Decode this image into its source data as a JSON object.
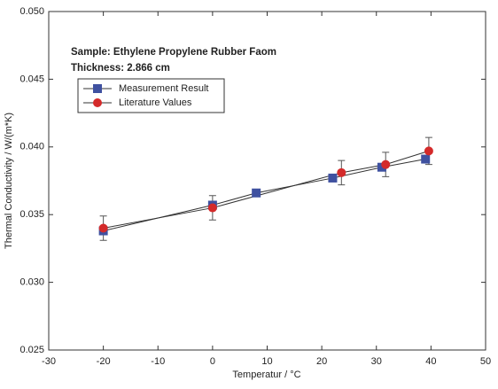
{
  "chart_data": {
    "type": "line",
    "annotations": [
      "Sample: Ethylene Propylene Rubber Faom",
      "Thickness: 2.866 cm"
    ],
    "x_label": "Temperatur / °C",
    "y_label": "Thermal Conductivity / W/(m*K)",
    "xlim": [
      -30,
      50
    ],
    "xticks": [
      -30,
      -20,
      -10,
      0,
      10,
      20,
      30,
      40,
      50
    ],
    "ylim": [
      0.025,
      0.05
    ],
    "yticks": [
      {
        "value": 0.025,
        "label": "0.025"
      },
      {
        "value": 0.03,
        "label": "0.030"
      },
      {
        "value": 0.035,
        "label": "0.035"
      },
      {
        "value": 0.04,
        "label": "0.040"
      },
      {
        "value": 0.045,
        "label": "0.045"
      },
      {
        "value": 0.05,
        "label": "0.050"
      }
    ],
    "legend": "upper left",
    "series": [
      {
        "name": "Measurement Result",
        "color": "#3f51a0",
        "marker": "square",
        "x": [
          -20,
          0,
          8,
          22,
          31,
          39
        ],
        "values": [
          0.0338,
          0.0357,
          0.0366,
          0.0377,
          0.0385,
          0.0391
        ]
      },
      {
        "name": "Literature Values",
        "color": "#d42a2a",
        "marker": "circle",
        "x": [
          -20,
          0,
          23.6,
          31.7,
          39.6
        ],
        "values": [
          0.034,
          0.0355,
          0.0381,
          0.0387,
          0.0397
        ],
        "errors": [
          0.0009,
          0.0009,
          0.0009,
          0.0009,
          0.001
        ]
      }
    ]
  }
}
